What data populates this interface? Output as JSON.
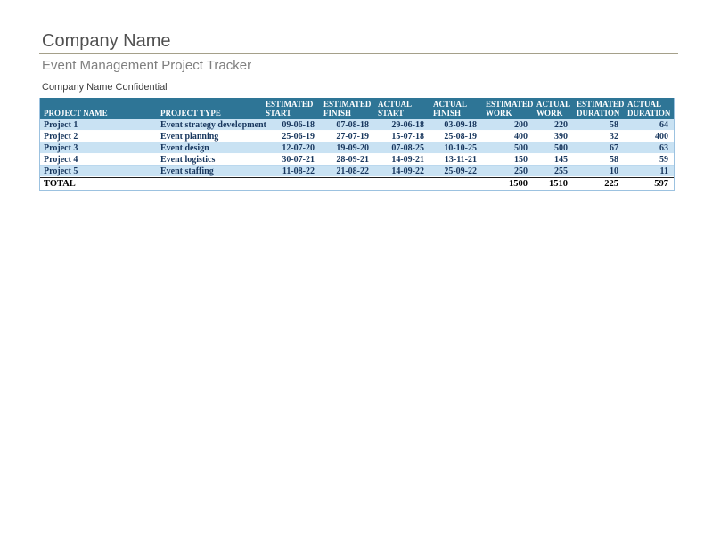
{
  "page": {
    "title": "Company Name",
    "subtitle": "Event Management Project Tracker",
    "confidential": "Company Name Confidential"
  },
  "table": {
    "columns": [
      {
        "label": "PROJECT NAME"
      },
      {
        "label": "PROJECT TYPE"
      },
      {
        "label": "ESTIMATED START"
      },
      {
        "label": "ESTIMATED FINISH"
      },
      {
        "label": "ACTUAL START"
      },
      {
        "label": "ACTUAL FINISH"
      },
      {
        "label": "ESTIMATED WORK"
      },
      {
        "label": "ACTUAL WORK"
      },
      {
        "label": "ESTIMATED DURATION"
      },
      {
        "label": "ACTUAL DURATION"
      }
    ],
    "rows": [
      {
        "name": "Project 1",
        "type": "Event strategy development",
        "est_start": "09-06-18",
        "est_finish": "07-08-18",
        "act_start": "29-06-18",
        "act_finish": "03-09-18",
        "est_work": "200",
        "act_work": "220",
        "est_duration": "58",
        "act_duration": "64"
      },
      {
        "name": "Project 2",
        "type": "Event planning",
        "est_start": "25-06-19",
        "est_finish": "27-07-19",
        "act_start": "15-07-18",
        "act_finish": "25-08-19",
        "est_work": "400",
        "act_work": "390",
        "est_duration": "32",
        "act_duration": "400"
      },
      {
        "name": "Project 3",
        "type": "Event design",
        "est_start": "12-07-20",
        "est_finish": "19-09-20",
        "act_start": "07-08-25",
        "act_finish": "10-10-25",
        "est_work": "500",
        "act_work": "500",
        "est_duration": "67",
        "act_duration": "63"
      },
      {
        "name": "Project 4",
        "type": "Event logistics",
        "est_start": "30-07-21",
        "est_finish": "28-09-21",
        "act_start": "14-09-21",
        "act_finish": "13-11-21",
        "est_work": "150",
        "act_work": "145",
        "est_duration": "58",
        "act_duration": "59"
      },
      {
        "name": "Project 5",
        "type": "Event staffing",
        "est_start": "11-08-22",
        "est_finish": "21-08-22",
        "act_start": "14-09-22",
        "act_finish": "25-09-22",
        "est_work": "250",
        "act_work": "255",
        "est_duration": "10",
        "act_duration": "11"
      }
    ],
    "total": {
      "label": "TOTAL",
      "est_work": "1500",
      "act_work": "1510",
      "est_duration": "225",
      "act_duration": "597"
    }
  },
  "colors": {
    "header_bg": "#2E7596",
    "row_alt": "#C9E2F3",
    "row_border": "#9CC2E0",
    "body_text": "#17365D",
    "title_rule": "#A5A08A"
  }
}
